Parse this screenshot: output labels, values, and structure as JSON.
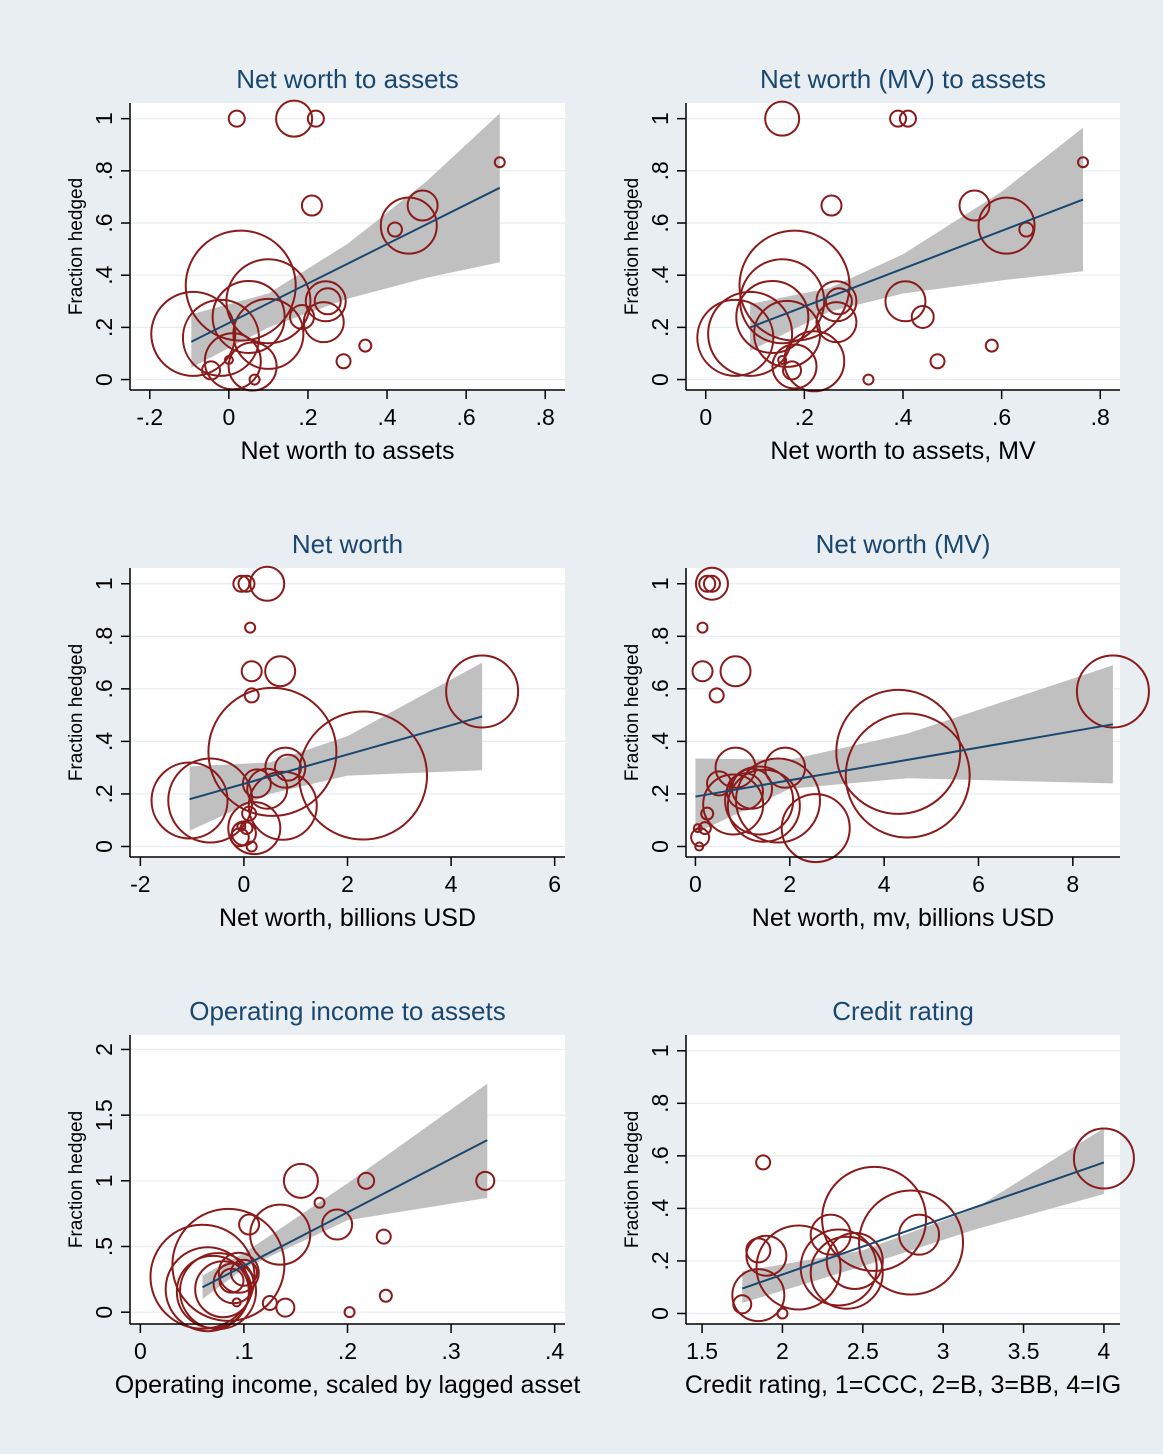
{
  "figure": {
    "background": "#e8eef2",
    "plot_background": "#ffffff",
    "marker_color": "#8b1a1a",
    "fit_line_color": "#1a476f",
    "ci_color": "#c0c0c0",
    "title_color": "#1a476f",
    "grid_color": "#e6ecef"
  },
  "chart_data": [
    {
      "type": "scatter",
      "title": "Net worth to assets",
      "xlabel": "Net worth to assets",
      "ylabel": "Fraction hedged",
      "xlim": [
        -0.25,
        0.85
      ],
      "ylim": [
        -0.04,
        1.06
      ],
      "xticks": [
        -0.2,
        0,
        0.2,
        0.4,
        0.6,
        0.8
      ],
      "xtick_labels": [
        "-.2",
        "0",
        ".2",
        ".4",
        ".6",
        ".8"
      ],
      "yticks": [
        0,
        0.2,
        0.4,
        0.6,
        0.8,
        1
      ],
      "ytick_labels": [
        "0",
        ".2",
        ".4",
        ".6",
        ".8",
        "1"
      ],
      "grid": true,
      "points": [
        {
          "x": 0.02,
          "y": 1.0,
          "r": 8
        },
        {
          "x": 0.165,
          "y": 1.0,
          "r": 18
        },
        {
          "x": 0.22,
          "y": 1.0,
          "r": 8
        },
        {
          "x": 0.685,
          "y": 0.833,
          "r": 5
        },
        {
          "x": 0.21,
          "y": 0.667,
          "r": 10
        },
        {
          "x": 0.49,
          "y": 0.667,
          "r": 15
        },
        {
          "x": 0.455,
          "y": 0.59,
          "r": 28
        },
        {
          "x": 0.42,
          "y": 0.575,
          "r": 7
        },
        {
          "x": 0.03,
          "y": 0.36,
          "r": 55
        },
        {
          "x": 0.1,
          "y": 0.3,
          "r": 42
        },
        {
          "x": 0.05,
          "y": 0.24,
          "r": 36
        },
        {
          "x": 0.245,
          "y": 0.3,
          "r": 20
        },
        {
          "x": 0.25,
          "y": 0.3,
          "r": 13
        },
        {
          "x": 0.185,
          "y": 0.24,
          "r": 12
        },
        {
          "x": 0.24,
          "y": 0.22,
          "r": 20
        },
        {
          "x": 0.1,
          "y": 0.175,
          "r": 35
        },
        {
          "x": -0.09,
          "y": 0.175,
          "r": 42
        },
        {
          "x": -0.02,
          "y": 0.16,
          "r": 38
        },
        {
          "x": 0.01,
          "y": 0.07,
          "r": 28
        },
        {
          "x": 0.06,
          "y": 0.05,
          "r": 24
        },
        {
          "x": 0.345,
          "y": 0.13,
          "r": 6
        },
        {
          "x": 0.29,
          "y": 0.07,
          "r": 7
        },
        {
          "x": -0.045,
          "y": 0.035,
          "r": 9
        },
        {
          "x": 0.0,
          "y": 0.075,
          "r": 4
        },
        {
          "x": 0.065,
          "y": 0.0,
          "r": 5
        }
      ],
      "fit": {
        "x": [
          -0.095,
          0.685
        ],
        "y": [
          0.145,
          0.735
        ]
      },
      "ci": {
        "x": [
          -0.095,
          0.1,
          0.3,
          0.5,
          0.685
        ],
        "lower": [
          0.045,
          0.2,
          0.31,
          0.39,
          0.45
        ],
        "upper": [
          0.25,
          0.33,
          0.52,
          0.76,
          1.02
        ]
      }
    },
    {
      "type": "scatter",
      "title": "Net worth (MV) to assets",
      "xlabel": "Net worth to assets, MV",
      "ylabel": "Fraction hedged",
      "xlim": [
        -0.04,
        0.84
      ],
      "ylim": [
        -0.04,
        1.06
      ],
      "xticks": [
        0,
        0.2,
        0.4,
        0.6,
        0.8
      ],
      "xtick_labels": [
        "0",
        ".2",
        ".4",
        ".6",
        ".8"
      ],
      "yticks": [
        0,
        0.2,
        0.4,
        0.6,
        0.8,
        1
      ],
      "ytick_labels": [
        "0",
        ".2",
        ".4",
        ".6",
        ".8",
        "1"
      ],
      "grid": true,
      "points": [
        {
          "x": 0.155,
          "y": 1.0,
          "r": 17
        },
        {
          "x": 0.39,
          "y": 1.0,
          "r": 8
        },
        {
          "x": 0.41,
          "y": 1.0,
          "r": 8
        },
        {
          "x": 0.765,
          "y": 0.833,
          "r": 5
        },
        {
          "x": 0.255,
          "y": 0.667,
          "r": 10
        },
        {
          "x": 0.545,
          "y": 0.667,
          "r": 15
        },
        {
          "x": 0.61,
          "y": 0.59,
          "r": 28
        },
        {
          "x": 0.65,
          "y": 0.575,
          "r": 7
        },
        {
          "x": 0.18,
          "y": 0.36,
          "r": 55
        },
        {
          "x": 0.155,
          "y": 0.3,
          "r": 42
        },
        {
          "x": 0.135,
          "y": 0.24,
          "r": 36
        },
        {
          "x": 0.265,
          "y": 0.3,
          "r": 20
        },
        {
          "x": 0.27,
          "y": 0.3,
          "r": 13
        },
        {
          "x": 0.405,
          "y": 0.3,
          "r": 20
        },
        {
          "x": 0.44,
          "y": 0.24,
          "r": 11
        },
        {
          "x": 0.265,
          "y": 0.22,
          "r": 20
        },
        {
          "x": 0.165,
          "y": 0.175,
          "r": 33
        },
        {
          "x": 0.09,
          "y": 0.175,
          "r": 42
        },
        {
          "x": 0.06,
          "y": 0.16,
          "r": 38
        },
        {
          "x": 0.22,
          "y": 0.07,
          "r": 30
        },
        {
          "x": 0.18,
          "y": 0.05,
          "r": 22
        },
        {
          "x": 0.47,
          "y": 0.07,
          "r": 7
        },
        {
          "x": 0.58,
          "y": 0.13,
          "r": 6
        },
        {
          "x": 0.175,
          "y": 0.035,
          "r": 9
        },
        {
          "x": 0.155,
          "y": 0.075,
          "r": 4
        },
        {
          "x": 0.33,
          "y": 0.0,
          "r": 5
        }
      ],
      "fit": {
        "x": [
          0.09,
          0.765
        ],
        "y": [
          0.2,
          0.69
        ]
      },
      "ci": {
        "x": [
          0.09,
          0.25,
          0.4,
          0.6,
          0.765
        ],
        "lower": [
          0.11,
          0.26,
          0.33,
          0.38,
          0.415
        ],
        "upper": [
          0.29,
          0.35,
          0.48,
          0.72,
          0.965
        ]
      }
    },
    {
      "type": "scatter",
      "title": "Net worth",
      "xlabel": "Net worth, billions USD",
      "ylabel": "Fraction hedged",
      "xlim": [
        -2.2,
        6.2
      ],
      "ylim": [
        -0.04,
        1.06
      ],
      "xticks": [
        -2,
        0,
        2,
        4,
        6
      ],
      "xtick_labels": [
        "-2",
        "0",
        "2",
        "4",
        "6"
      ],
      "yticks": [
        0,
        0.2,
        0.4,
        0.6,
        0.8,
        1
      ],
      "ytick_labels": [
        "0",
        ".2",
        ".4",
        ".6",
        ".8",
        "1"
      ],
      "grid": true,
      "points": [
        {
          "x": -0.05,
          "y": 1.0,
          "r": 8
        },
        {
          "x": 0.05,
          "y": 1.0,
          "r": 8
        },
        {
          "x": 0.45,
          "y": 1.0,
          "r": 17
        },
        {
          "x": 0.12,
          "y": 0.833,
          "r": 5
        },
        {
          "x": 0.15,
          "y": 0.667,
          "r": 10
        },
        {
          "x": 0.7,
          "y": 0.667,
          "r": 15
        },
        {
          "x": 4.6,
          "y": 0.59,
          "r": 36
        },
        {
          "x": 0.15,
          "y": 0.575,
          "r": 7
        },
        {
          "x": 0.55,
          "y": 0.36,
          "r": 64
        },
        {
          "x": 2.3,
          "y": 0.27,
          "r": 64
        },
        {
          "x": 0.8,
          "y": 0.3,
          "r": 20
        },
        {
          "x": 0.85,
          "y": 0.3,
          "r": 13
        },
        {
          "x": 0.25,
          "y": 0.24,
          "r": 14
        },
        {
          "x": 0.45,
          "y": 0.22,
          "r": 20
        },
        {
          "x": -0.65,
          "y": 0.175,
          "r": 42
        },
        {
          "x": -1.05,
          "y": 0.175,
          "r": 38
        },
        {
          "x": 0.75,
          "y": 0.155,
          "r": 34
        },
        {
          "x": 0.2,
          "y": 0.07,
          "r": 26
        },
        {
          "x": 0.0,
          "y": 0.05,
          "r": 12
        },
        {
          "x": 0.1,
          "y": 0.125,
          "r": 7
        },
        {
          "x": 0.05,
          "y": 0.07,
          "r": 6
        },
        {
          "x": -0.08,
          "y": 0.035,
          "r": 9
        },
        {
          "x": -0.05,
          "y": 0.075,
          "r": 4
        },
        {
          "x": 0.15,
          "y": 0.0,
          "r": 5
        }
      ],
      "fit": {
        "x": [
          -1.05,
          4.6
        ],
        "y": [
          0.18,
          0.495
        ]
      },
      "ci": {
        "x": [
          -1.05,
          0.5,
          2.0,
          4.6
        ],
        "lower": [
          0.06,
          0.2,
          0.27,
          0.29
        ],
        "upper": [
          0.305,
          0.32,
          0.42,
          0.7
        ]
      }
    },
    {
      "type": "scatter",
      "title": "Net worth (MV)",
      "xlabel": "Net worth, mv, billions USD",
      "ylabel": "Fraction hedged",
      "xlim": [
        -0.2,
        9.0
      ],
      "ylim": [
        -0.04,
        1.06
      ],
      "xticks": [
        0,
        2,
        4,
        6,
        8
      ],
      "xtick_labels": [
        "0",
        "2",
        "4",
        "6",
        "8"
      ],
      "yticks": [
        0,
        0.2,
        0.4,
        0.6,
        0.8,
        1
      ],
      "ytick_labels": [
        "0",
        ".2",
        ".4",
        ".6",
        ".8",
        "1"
      ],
      "grid": true,
      "points": [
        {
          "x": 0.25,
          "y": 1.0,
          "r": 8
        },
        {
          "x": 0.35,
          "y": 1.0,
          "r": 8
        },
        {
          "x": 0.35,
          "y": 1.0,
          "r": 16
        },
        {
          "x": 0.15,
          "y": 0.833,
          "r": 5
        },
        {
          "x": 0.15,
          "y": 0.667,
          "r": 10
        },
        {
          "x": 0.85,
          "y": 0.667,
          "r": 15
        },
        {
          "x": 8.85,
          "y": 0.59,
          "r": 36
        },
        {
          "x": 0.45,
          "y": 0.575,
          "r": 7
        },
        {
          "x": 4.3,
          "y": 0.36,
          "r": 62
        },
        {
          "x": 4.5,
          "y": 0.27,
          "r": 62
        },
        {
          "x": 0.85,
          "y": 0.3,
          "r": 20
        },
        {
          "x": 1.9,
          "y": 0.3,
          "r": 20
        },
        {
          "x": 0.5,
          "y": 0.24,
          "r": 12
        },
        {
          "x": 1.2,
          "y": 0.22,
          "r": 20
        },
        {
          "x": 1.35,
          "y": 0.175,
          "r": 34
        },
        {
          "x": 1.45,
          "y": 0.155,
          "r": 36
        },
        {
          "x": 1.75,
          "y": 0.175,
          "r": 42
        },
        {
          "x": 0.8,
          "y": 0.16,
          "r": 30
        },
        {
          "x": 2.55,
          "y": 0.07,
          "r": 34
        },
        {
          "x": 1.05,
          "y": 0.21,
          "r": 18
        },
        {
          "x": 0.2,
          "y": 0.07,
          "r": 6
        },
        {
          "x": 0.1,
          "y": 0.035,
          "r": 9
        },
        {
          "x": 0.05,
          "y": 0.07,
          "r": 4
        },
        {
          "x": 0.25,
          "y": 0.125,
          "r": 6
        },
        {
          "x": 0.08,
          "y": 0.0,
          "r": 4
        }
      ],
      "fit": {
        "x": [
          0.0,
          8.85
        ],
        "y": [
          0.19,
          0.465
        ]
      },
      "ci": {
        "x": [
          0.0,
          2.0,
          4.5,
          8.85
        ],
        "lower": [
          0.05,
          0.22,
          0.26,
          0.24
        ],
        "upper": [
          0.335,
          0.33,
          0.43,
          0.69
        ]
      }
    },
    {
      "type": "scatter",
      "title": "Operating income to assets",
      "xlabel": "Operating income, scaled by lagged asset",
      "ylabel": "Fraction hedged",
      "xlim": [
        -0.01,
        0.41
      ],
      "ylim": [
        -0.09,
        2.11
      ],
      "xticks": [
        0,
        0.1,
        0.2,
        0.3,
        0.4
      ],
      "xtick_labels": [
        "0",
        ".1",
        ".2",
        ".3",
        ".4"
      ],
      "yticks": [
        0,
        0.5,
        1,
        1.5,
        2
      ],
      "ytick_labels": [
        "0",
        ".5",
        "1",
        "1.5",
        "2"
      ],
      "grid": true,
      "points": [
        {
          "x": 0.155,
          "y": 1.0,
          "r": 17
        },
        {
          "x": 0.218,
          "y": 1.0,
          "r": 8
        },
        {
          "x": 0.333,
          "y": 1.0,
          "r": 9
        },
        {
          "x": 0.173,
          "y": 0.833,
          "r": 5
        },
        {
          "x": 0.105,
          "y": 0.667,
          "r": 10
        },
        {
          "x": 0.19,
          "y": 0.667,
          "r": 15
        },
        {
          "x": 0.235,
          "y": 0.575,
          "r": 7
        },
        {
          "x": 0.135,
          "y": 0.59,
          "r": 30
        },
        {
          "x": 0.085,
          "y": 0.36,
          "r": 56
        },
        {
          "x": 0.06,
          "y": 0.27,
          "r": 52
        },
        {
          "x": 0.095,
          "y": 0.3,
          "r": 20
        },
        {
          "x": 0.1,
          "y": 0.3,
          "r": 13
        },
        {
          "x": 0.088,
          "y": 0.24,
          "r": 12
        },
        {
          "x": 0.09,
          "y": 0.22,
          "r": 20
        },
        {
          "x": 0.065,
          "y": 0.175,
          "r": 42
        },
        {
          "x": 0.07,
          "y": 0.155,
          "r": 36
        },
        {
          "x": 0.08,
          "y": 0.175,
          "r": 28
        },
        {
          "x": 0.075,
          "y": 0.16,
          "r": 38
        },
        {
          "x": 0.125,
          "y": 0.07,
          "r": 7
        },
        {
          "x": 0.14,
          "y": 0.035,
          "r": 9
        },
        {
          "x": 0.237,
          "y": 0.125,
          "r": 6
        },
        {
          "x": 0.202,
          "y": 0.0,
          "r": 5
        },
        {
          "x": 0.093,
          "y": 0.075,
          "r": 4
        }
      ],
      "fit": {
        "x": [
          0.06,
          0.335
        ],
        "y": [
          0.19,
          1.31
        ]
      },
      "ci": {
        "x": [
          0.06,
          0.1,
          0.2,
          0.335
        ],
        "lower": [
          0.1,
          0.33,
          0.7,
          0.87
        ],
        "upper": [
          0.28,
          0.45,
          0.98,
          1.74
        ]
      }
    },
    {
      "type": "scatter",
      "title": "Credit rating",
      "xlabel": "Credit rating, 1=CCC, 2=B, 3=BB, 4=IG",
      "ylabel": "Fraction hedged",
      "xlim": [
        1.4,
        4.1
      ],
      "ylim": [
        -0.04,
        1.06
      ],
      "xticks": [
        1.5,
        2,
        2.5,
        3,
        3.5,
        4
      ],
      "xtick_labels": [
        "1.5",
        "2",
        "2.5",
        "3",
        "3.5",
        "4"
      ],
      "yticks": [
        0,
        0.2,
        0.4,
        0.6,
        0.8,
        1
      ],
      "ytick_labels": [
        "0",
        ".2",
        ".4",
        ".6",
        ".8",
        "1"
      ],
      "grid": true,
      "points": [
        {
          "x": 4.0,
          "y": 0.59,
          "r": 30
        },
        {
          "x": 1.88,
          "y": 0.575,
          "r": 7
        },
        {
          "x": 2.57,
          "y": 0.36,
          "r": 52
        },
        {
          "x": 2.8,
          "y": 0.27,
          "r": 52
        },
        {
          "x": 2.3,
          "y": 0.3,
          "r": 20
        },
        {
          "x": 2.85,
          "y": 0.3,
          "r": 20
        },
        {
          "x": 1.85,
          "y": 0.24,
          "r": 12
        },
        {
          "x": 1.9,
          "y": 0.22,
          "r": 20
        },
        {
          "x": 2.1,
          "y": 0.175,
          "r": 42
        },
        {
          "x": 2.35,
          "y": 0.175,
          "r": 38
        },
        {
          "x": 2.4,
          "y": 0.155,
          "r": 36
        },
        {
          "x": 2.45,
          "y": 0.2,
          "r": 28
        },
        {
          "x": 1.85,
          "y": 0.07,
          "r": 26
        },
        {
          "x": 1.75,
          "y": 0.035,
          "r": 9
        },
        {
          "x": 2.0,
          "y": 0.0,
          "r": 5
        }
      ],
      "fit": {
        "x": [
          1.75,
          4.0
        ],
        "y": [
          0.095,
          0.575
        ]
      },
      "ci": {
        "x": [
          1.75,
          2.5,
          3.2,
          4.0
        ],
        "lower": [
          0.04,
          0.18,
          0.32,
          0.455
        ],
        "upper": [
          0.16,
          0.24,
          0.4,
          0.705
        ]
      }
    }
  ]
}
